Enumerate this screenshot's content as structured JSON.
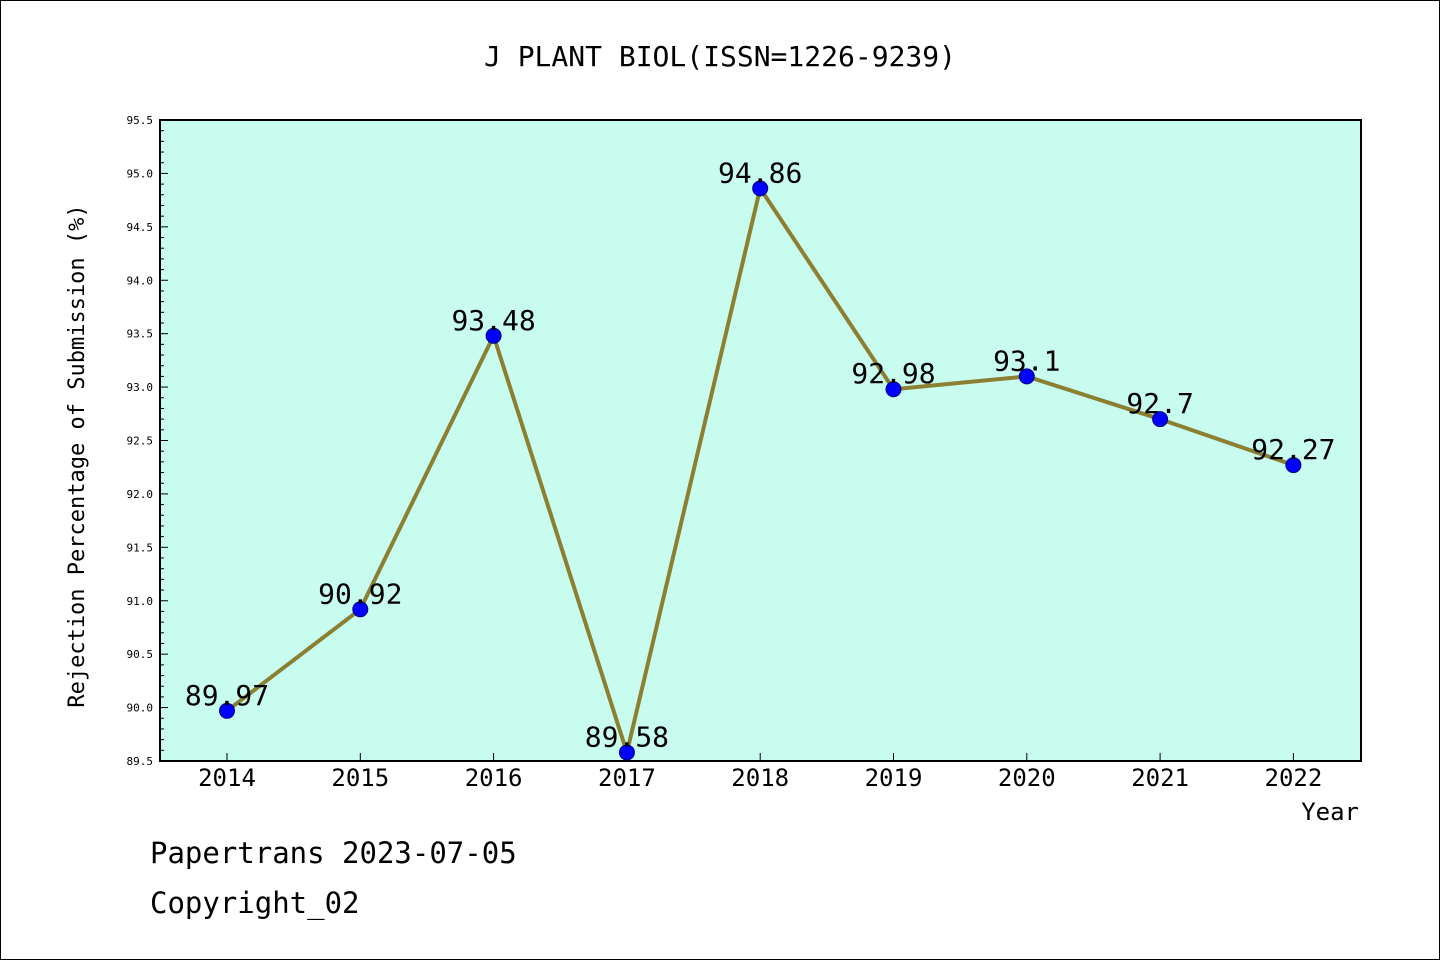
{
  "chart_data": {
    "type": "line",
    "title": "J PLANT BIOL(ISSN=1226-9239)",
    "xlabel": "Year",
    "ylabel": "Rejection Percentage of Submission (%)",
    "categories": [
      "2014",
      "2015",
      "2016",
      "2017",
      "2018",
      "2019",
      "2020",
      "2021",
      "2022"
    ],
    "values": [
      89.97,
      90.92,
      93.48,
      89.58,
      94.86,
      92.98,
      93.1,
      92.7,
      92.27
    ],
    "data_labels": [
      "89.97",
      "90.92",
      "93.48",
      "89.58",
      "94.86",
      "92.98",
      "93.1",
      "92.7",
      "92.27"
    ],
    "ylim": [
      89.5,
      95.5
    ],
    "yticks": [
      "89.5",
      "90.0",
      "90.5",
      "91.0",
      "91.5",
      "92.0",
      "92.5",
      "93.0",
      "93.5",
      "94.0",
      "94.5",
      "95.0",
      "95.5"
    ],
    "grid": false,
    "colors": {
      "plot_background": "#c8fcee",
      "line": "#8b8032",
      "marker": "#0000ff"
    }
  },
  "footer": {
    "line1": "Papertrans 2023-07-05",
    "line2": "Copyright_02"
  }
}
